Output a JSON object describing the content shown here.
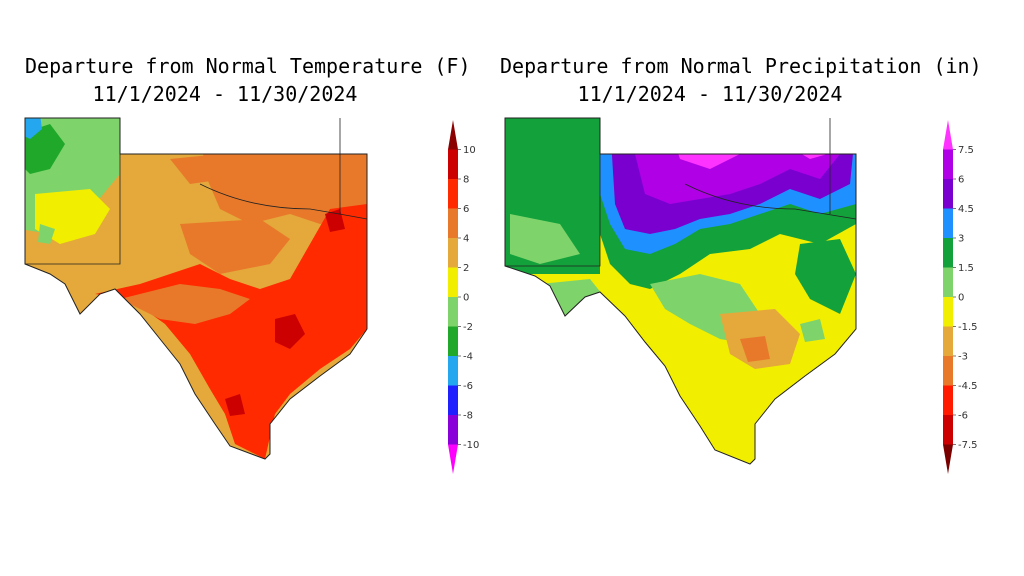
{
  "temperature_map": {
    "title": "Departure from Normal Temperature (F)",
    "period": "11/1/2024 - 11/30/2024",
    "legend": {
      "ticks": [
        "10",
        "8",
        "6",
        "4",
        "2",
        "0",
        "-2",
        "-4",
        "-6",
        "-8",
        "-10"
      ],
      "colors": [
        "#8b0000",
        "#cc0000",
        "#ff2a00",
        "#e8792b",
        "#e4a93a",
        "#f2ee00",
        "#7fd36b",
        "#1fa82a",
        "#25a7f0",
        "#2020ff",
        "#8a00d9",
        "#ff00ff"
      ]
    }
  },
  "precipitation_map": {
    "title": "Departure from Normal Precipitation (in)",
    "period": "11/1/2024 - 11/30/2024",
    "legend": {
      "ticks": [
        "7.5",
        "6",
        "4.5",
        "3",
        "1.5",
        "0",
        "-1.5",
        "-3",
        "-4.5",
        "-6",
        "-7.5"
      ],
      "colors": [
        "#ff33ff",
        "#b000e6",
        "#7a00d0",
        "#1e90ff",
        "#12a13a",
        "#7fd36b",
        "#f2ee00",
        "#e4a93a",
        "#e8792b",
        "#ff1a00",
        "#cc0000",
        "#7a0000"
      ]
    }
  }
}
